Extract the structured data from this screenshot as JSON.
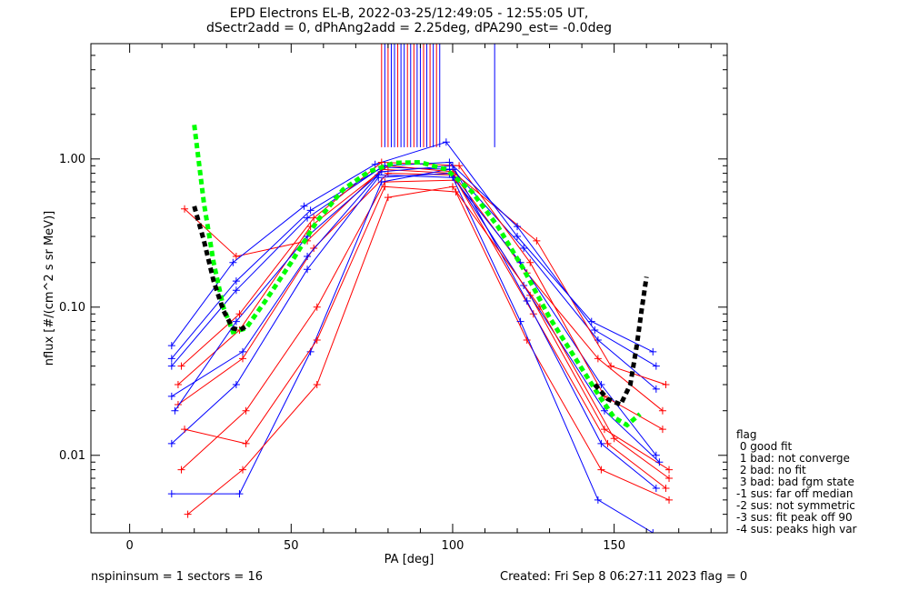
{
  "title_line1": "EPD Electrons EL-B, 2022-03-25/12:49:05 - 12:55:05 UT,",
  "title_line2": "dSectr2add = 0, dPhAng2add = 2.25deg, dPA290_est=  -0.0deg",
  "footer_left": "nspininsum =  1  sectors = 16",
  "footer_right": "Created: Fri Sep  8 06:27:11 2023   flag = 0",
  "legend": {
    "title": "flag",
    "entries": [
      " 0 good fit",
      " 1 bad: not converge",
      " 2 bad: no fit",
      " 3 bad: bad fgm state",
      "-1 sus: far off median",
      "-2 sus: not symmetric",
      "-3 sus: fit peak off 90",
      "-4 sus: peaks high var"
    ]
  },
  "colors": {
    "red_spectra": "#ff0000",
    "blue_spectra": "#0000ff",
    "fit_green": "#00ff00",
    "fit_black": "#000000"
  },
  "chart_data": {
    "type": "line",
    "xlabel": "PA [deg]",
    "ylabel": "nflux [#/(cm^2 s sr MeV)]",
    "xlim": [
      -12,
      185
    ],
    "ylim": [
      0.003,
      6.0
    ],
    "yscale": "log",
    "x_ticks": [
      0,
      50,
      100,
      150
    ],
    "y_ticks": [
      0.01,
      0.1,
      1.0
    ],
    "y_tick_labels": [
      "0.01",
      "0.10",
      "1.00"
    ],
    "series": [
      {
        "color": "#ff0000",
        "x": [
          17,
          33,
          55,
          78,
          100,
          123,
          145,
          165
        ],
        "y": [
          0.46,
          0.22,
          0.28,
          0.85,
          0.8,
          0.17,
          0.045,
          0.02
        ]
      },
      {
        "color": "#0000ff",
        "x": [
          13,
          33,
          55,
          78,
          100,
          122,
          145,
          163
        ],
        "y": [
          0.04,
          0.13,
          0.4,
          0.88,
          0.85,
          0.25,
          0.06,
          0.028
        ]
      },
      {
        "color": "#ff0000",
        "x": [
          15,
          35,
          57,
          80,
          100,
          124,
          147,
          167
        ],
        "y": [
          0.022,
          0.045,
          0.25,
          0.8,
          0.78,
          0.12,
          0.015,
          0.008
        ]
      },
      {
        "color": "#0000ff",
        "x": [
          13,
          33,
          55,
          77,
          99,
          121,
          146,
          163
        ],
        "y": [
          0.012,
          0.03,
          0.18,
          0.75,
          0.8,
          0.2,
          0.03,
          0.01
        ]
      },
      {
        "color": "#ff0000",
        "x": [
          16,
          36,
          58,
          79,
          101,
          125,
          148,
          166
        ],
        "y": [
          0.008,
          0.02,
          0.1,
          0.7,
          0.72,
          0.09,
          0.012,
          0.006
        ]
      },
      {
        "color": "#0000ff",
        "x": [
          13,
          34,
          56,
          78,
          99,
          122,
          147,
          164
        ],
        "y": [
          0.0055,
          0.0055,
          0.05,
          0.7,
          0.85,
          0.14,
          0.02,
          0.009
        ]
      },
      {
        "color": "#ff0000",
        "x": [
          15,
          34,
          56,
          80,
          100,
          126,
          149,
          166
        ],
        "y": [
          0.03,
          0.07,
          0.35,
          0.9,
          0.82,
          0.28,
          0.04,
          0.03
        ]
      },
      {
        "color": "#0000ff",
        "x": [
          13,
          32,
          54,
          76,
          98,
          120,
          143,
          162
        ],
        "y": [
          0.055,
          0.2,
          0.48,
          0.92,
          1.3,
          0.3,
          0.08,
          0.05
        ]
      },
      {
        "color": "#ff0000",
        "x": [
          17,
          36,
          58,
          79,
          101,
          123,
          146,
          167
        ],
        "y": [
          0.015,
          0.012,
          0.06,
          0.65,
          0.6,
          0.06,
          0.008,
          0.005
        ]
      },
      {
        "color": "#0000ff",
        "x": [
          14,
          33,
          55,
          78,
          100,
          123,
          146,
          163
        ],
        "y": [
          0.02,
          0.08,
          0.3,
          0.82,
          0.9,
          0.11,
          0.012,
          0.006
        ]
      },
      {
        "color": "#ff0000",
        "x": [
          16,
          34,
          57,
          78,
          102,
          124,
          147,
          165
        ],
        "y": [
          0.04,
          0.09,
          0.4,
          0.95,
          0.9,
          0.2,
          0.025,
          0.015
        ]
      },
      {
        "color": "#0000ff",
        "x": [
          13,
          35,
          55,
          77,
          100,
          121,
          145,
          162
        ],
        "y": [
          0.025,
          0.05,
          0.22,
          0.78,
          0.75,
          0.08,
          0.005,
          0.003
        ]
      },
      {
        "color": "#ff0000",
        "x": [
          18,
          35,
          58,
          80,
          100,
          127,
          150,
          167
        ],
        "y": [
          0.004,
          0.008,
          0.03,
          0.55,
          0.65,
          0.1,
          0.013,
          0.007
        ]
      },
      {
        "color": "#0000ff",
        "x": [
          13,
          33,
          56,
          79,
          99,
          120,
          144,
          163
        ],
        "y": [
          0.045,
          0.15,
          0.45,
          0.9,
          0.95,
          0.35,
          0.07,
          0.04
        ]
      }
    ],
    "fits": [
      {
        "color": "#00ff00",
        "style": "dashed",
        "x": [
          20,
          23,
          26,
          29,
          32,
          36,
          42,
          50,
          58,
          66,
          74,
          82,
          90,
          98,
          106,
          114,
          122,
          130,
          138,
          146,
          150,
          154,
          158
        ],
        "y": [
          1.7,
          0.5,
          0.2,
          0.1,
          0.068,
          0.072,
          0.11,
          0.2,
          0.38,
          0.62,
          0.82,
          0.94,
          0.95,
          0.85,
          0.6,
          0.35,
          0.18,
          0.085,
          0.045,
          0.024,
          0.018,
          0.016,
          0.019
        ]
      },
      {
        "color": "#000000",
        "style": "dashed",
        "x": [
          20,
          23,
          26,
          29,
          32,
          34,
          36
        ],
        "y": [
          0.48,
          0.28,
          0.15,
          0.095,
          0.072,
          0.07,
          0.074
        ]
      },
      {
        "color": "#000000",
        "style": "dashed",
        "x": [
          144,
          148,
          152,
          155,
          157,
          158.5,
          160
        ],
        "y": [
          0.03,
          0.024,
          0.022,
          0.03,
          0.055,
          0.095,
          0.16
        ]
      }
    ],
    "vertical_lines": {
      "y_from": 1.2,
      "y_to": 6.0,
      "red_x": [
        78,
        80,
        83,
        86,
        88,
        91,
        93,
        95
      ],
      "blue_x": [
        79,
        81,
        82,
        84,
        85,
        87,
        89,
        90,
        92,
        94,
        96,
        113
      ]
    }
  }
}
